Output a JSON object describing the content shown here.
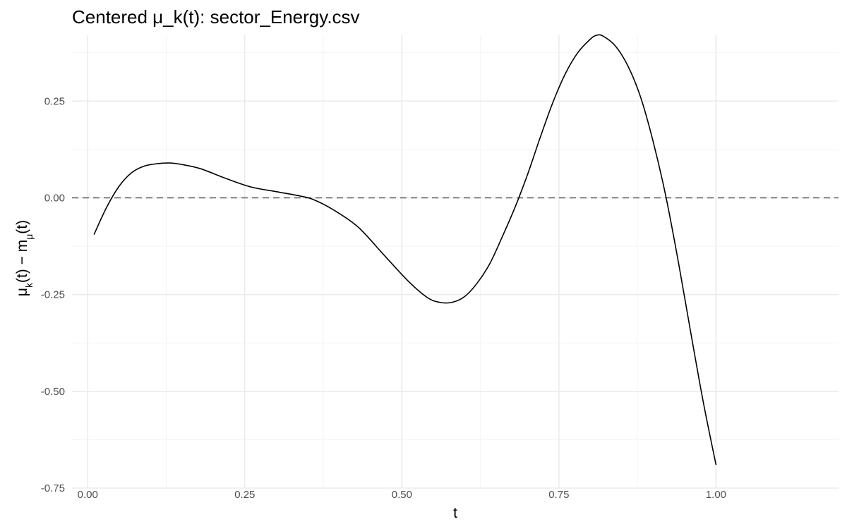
{
  "chart_data": {
    "type": "line",
    "title": "Centered μ_k(t): sector_Energy.csv",
    "xlabel": "t",
    "ylabel": {
      "parts": [
        {
          "text": "μ",
          "sub": false
        },
        {
          "text": "k",
          "sub": true
        },
        {
          "text": "(t) − m",
          "sub": false
        },
        {
          "text": "μ",
          "sub": true
        },
        {
          "text": "(t)",
          "sub": false
        }
      ]
    },
    "xlim": [
      -0.025,
      1.195
    ],
    "ylim": [
      -0.75,
      0.42
    ],
    "x_ticks": [
      0.0,
      0.25,
      0.5,
      0.75,
      1.0
    ],
    "x_tick_labels": [
      "0.00",
      "0.25",
      "0.50",
      "0.75",
      "1.00"
    ],
    "y_ticks": [
      -0.75,
      -0.5,
      -0.25,
      0.0,
      0.25
    ],
    "y_tick_labels": [
      "-0.75",
      "-0.50",
      "-0.25",
      "0.00",
      "0.25"
    ],
    "grid": true,
    "reference_line": {
      "y": 0.0,
      "style": "dashed"
    },
    "series": [
      {
        "x": [
          0.01,
          0.03,
          0.05,
          0.07,
          0.09,
          0.11,
          0.13,
          0.15,
          0.18,
          0.22,
          0.26,
          0.3,
          0.34,
          0.36,
          0.39,
          0.43,
          0.47,
          0.51,
          0.54,
          0.56,
          0.58,
          0.6,
          0.62,
          0.64,
          0.66,
          0.68,
          0.7,
          0.72,
          0.74,
          0.76,
          0.78,
          0.8,
          0.81,
          0.82,
          0.84,
          0.86,
          0.88,
          0.9,
          0.92,
          0.94,
          0.96,
          0.98,
          1.0
        ],
        "y": [
          -0.095,
          -0.025,
          0.03,
          0.065,
          0.082,
          0.088,
          0.09,
          0.086,
          0.075,
          0.05,
          0.028,
          0.016,
          0.004,
          -0.005,
          -0.03,
          -0.075,
          -0.145,
          -0.215,
          -0.257,
          -0.27,
          -0.27,
          -0.255,
          -0.22,
          -0.17,
          -0.1,
          -0.025,
          0.06,
          0.155,
          0.245,
          0.32,
          0.375,
          0.41,
          0.42,
          0.418,
          0.392,
          0.34,
          0.26,
          0.145,
          0.005,
          -0.165,
          -0.35,
          -0.53,
          -0.69
        ]
      }
    ]
  }
}
